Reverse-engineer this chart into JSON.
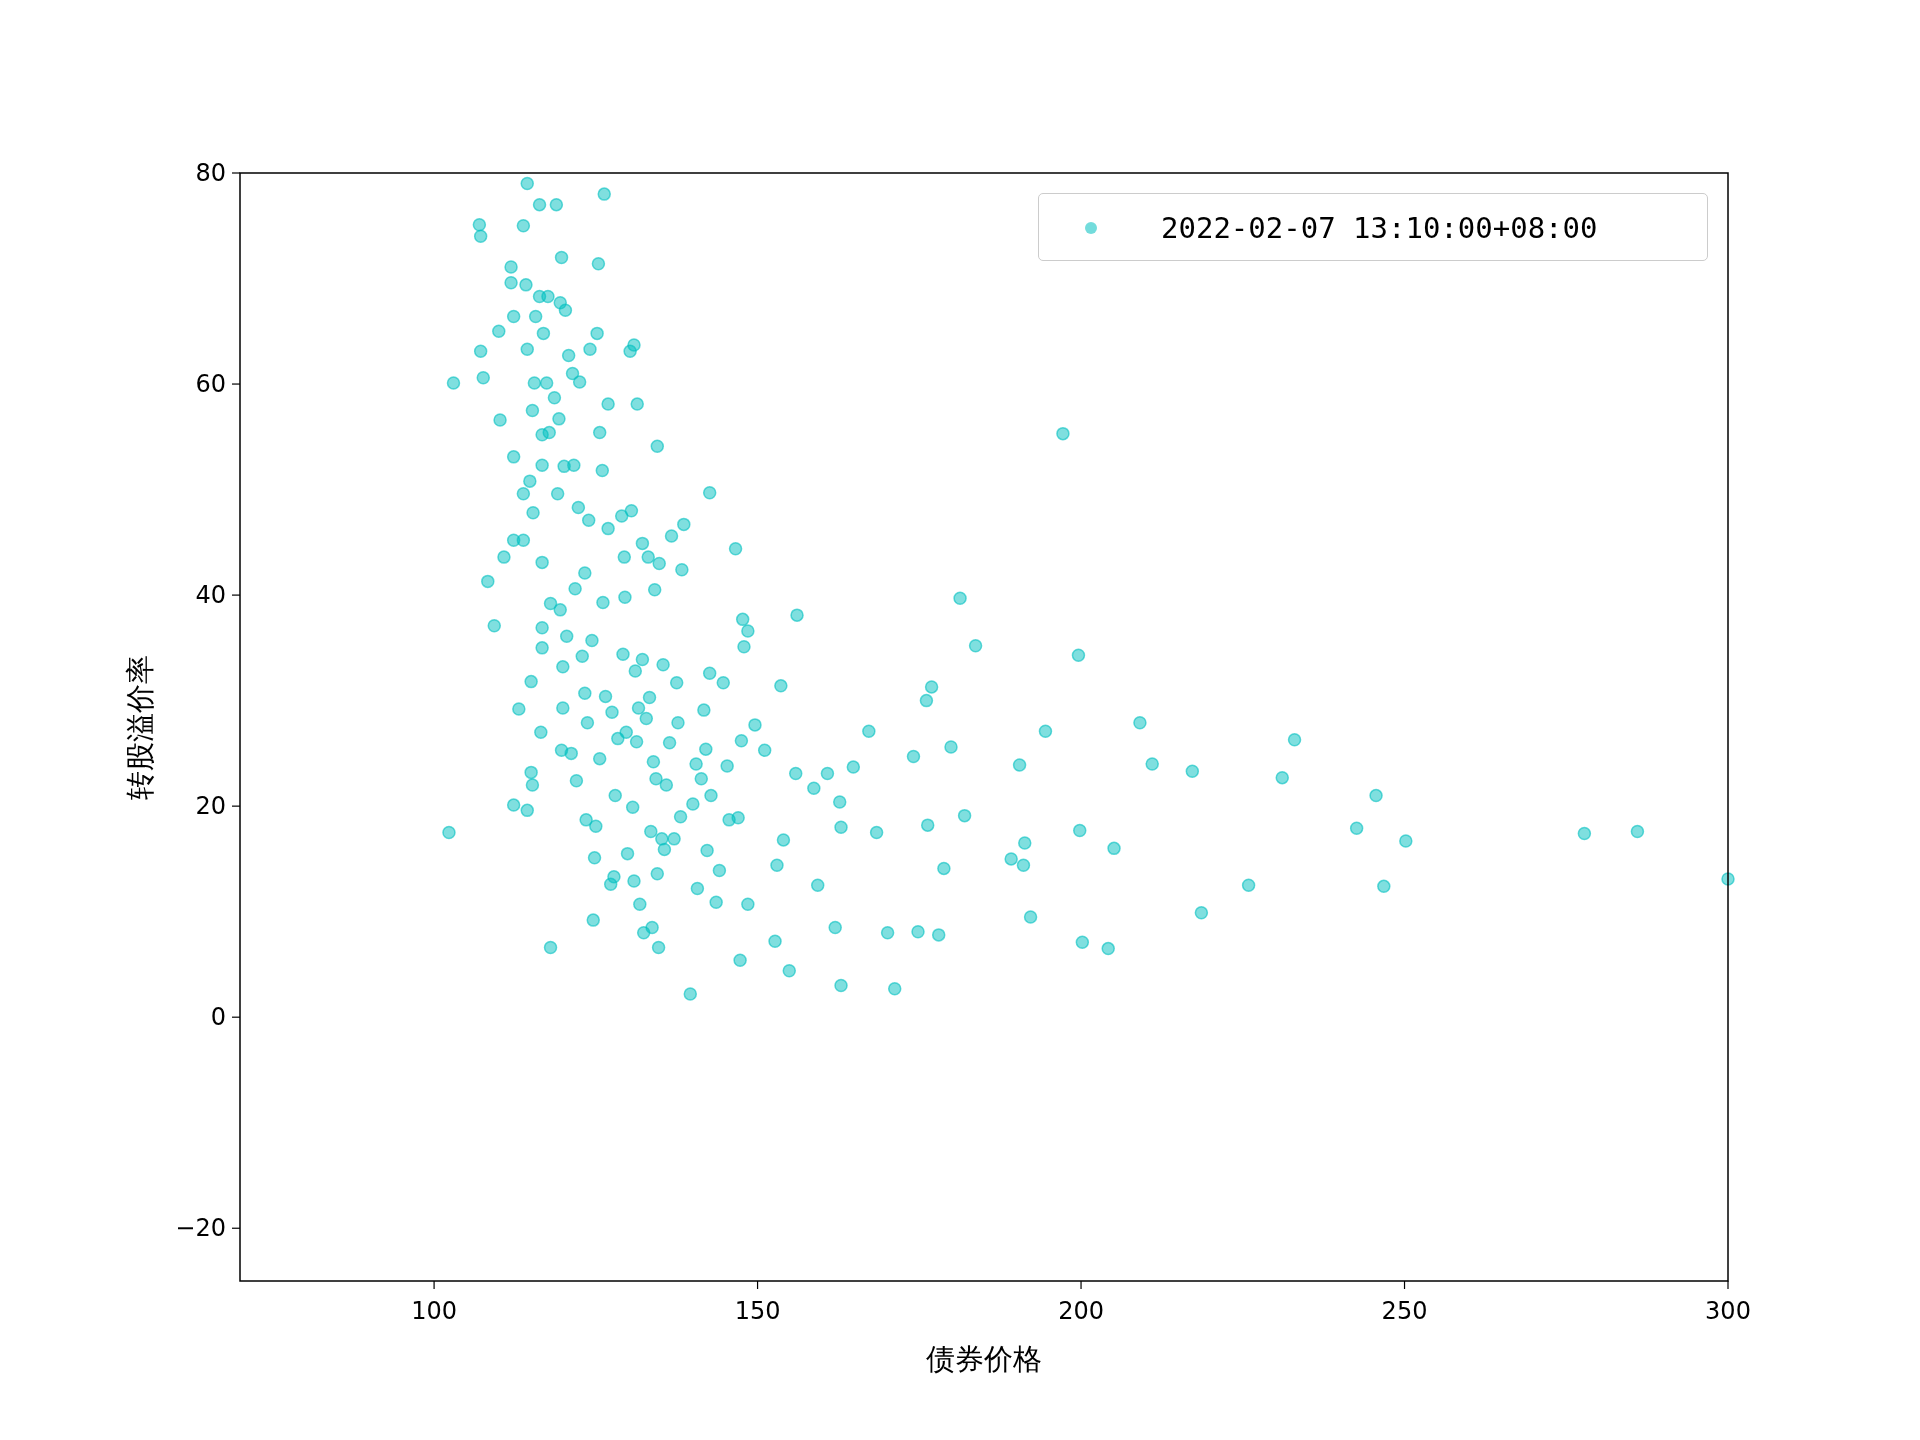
{
  "chart_data": {
    "type": "scatter",
    "xlabel": "债券价格",
    "ylabel": "转股溢价率",
    "xlim": [
      70,
      300
    ],
    "ylim": [
      -25,
      80
    ],
    "xticks": [
      100,
      150,
      200,
      250,
      300
    ],
    "yticks": [
      -20,
      0,
      20,
      40,
      60,
      80
    ],
    "legend": "top right",
    "marker": "circle",
    "series": [
      {
        "name": "2022-02-07 13:10:00+08:00",
        "color": "#00bfbf",
        "x": [
          102.3,
          103.0,
          107.0,
          107.2,
          107.2,
          107.6,
          108.3,
          109.3,
          110.0,
          110.2,
          110.8,
          111.9,
          111.9,
          112.3,
          112.3,
          112.3,
          112.3,
          113.1,
          113.8,
          113.8,
          113.8,
          114.2,
          114.4,
          114.4,
          114.4,
          114.8,
          115.0,
          115.0,
          115.2,
          115.2,
          115.3,
          115.5,
          115.7,
          116.3,
          116.3,
          116.5,
          116.7,
          116.7,
          116.7,
          116.7,
          116.7,
          116.9,
          117.4,
          117.6,
          117.8,
          118.0,
          118.0,
          118.6,
          118.9,
          119.1,
          119.3,
          119.5,
          119.5,
          119.7,
          119.7,
          119.9,
          119.9,
          120.1,
          120.3,
          120.5,
          120.8,
          121.2,
          121.4,
          121.6,
          121.8,
          122.0,
          122.3,
          122.5,
          122.9,
          123.3,
          123.3,
          123.5,
          123.7,
          123.9,
          124.1,
          124.4,
          124.6,
          124.8,
          125.0,
          125.2,
          125.4,
          125.6,
          125.6,
          126.0,
          126.1,
          126.3,
          126.5,
          126.9,
          126.9,
          127.3,
          127.5,
          127.8,
          128.0,
          128.4,
          129.0,
          129.2,
          129.4,
          129.5,
          129.7,
          129.9,
          130.3,
          130.5,
          130.7,
          130.9,
          130.9,
          131.1,
          131.3,
          131.4,
          131.6,
          131.8,
          132.2,
          132.2,
          132.4,
          132.8,
          133.1,
          133.3,
          133.5,
          133.7,
          133.9,
          134.1,
          134.3,
          134.5,
          134.5,
          134.7,
          134.8,
          135.2,
          135.4,
          135.6,
          135.9,
          136.4,
          136.7,
          137.1,
          137.5,
          137.7,
          138.1,
          138.3,
          138.6,
          139.6,
          140.0,
          140.5,
          140.7,
          141.3,
          141.7,
          142.0,
          142.2,
          142.6,
          142.6,
          142.8,
          143.6,
          144.1,
          144.7,
          145.3,
          145.6,
          146.6,
          147.0,
          147.3,
          147.5,
          147.7,
          147.9,
          148.5,
          148.5,
          149.6,
          151.1,
          152.7,
          153.0,
          153.6,
          154.0,
          154.9,
          155.9,
          156.1,
          158.7,
          159.3,
          160.8,
          162.0,
          162.7,
          162.9,
          162.9,
          164.8,
          167.2,
          168.4,
          170.1,
          171.2,
          174.1,
          174.8,
          176.1,
          176.3,
          176.9,
          178.0,
          178.8,
          179.9,
          181.3,
          182.0,
          183.7,
          189.2,
          190.5,
          191.1,
          191.3,
          192.2,
          194.5,
          197.2,
          199.6,
          199.8,
          200.2,
          204.2,
          205.1,
          209.1,
          211.0,
          217.2,
          218.6,
          225.9,
          231.1,
          233.0,
          242.6,
          245.6,
          246.8,
          250.2,
          277.8,
          286.0,
          300.0
        ],
        "values": [
          17.5,
          60.1,
          75.1,
          74.0,
          63.1,
          60.6,
          41.3,
          37.1,
          65.0,
          56.6,
          43.6,
          71.1,
          69.6,
          66.4,
          53.1,
          45.2,
          20.1,
          29.2,
          75.0,
          45.2,
          49.6,
          69.4,
          79.0,
          63.3,
          19.6,
          50.8,
          31.8,
          23.2,
          22.0,
          57.5,
          47.8,
          60.1,
          66.4,
          77.0,
          68.3,
          27.0,
          35.0,
          43.1,
          52.3,
          55.2,
          36.9,
          64.8,
          60.1,
          68.3,
          55.4,
          6.6,
          39.2,
          58.7,
          77.0,
          49.6,
          56.7,
          67.7,
          38.6,
          72.0,
          25.3,
          33.2,
          29.3,
          52.2,
          67.0,
          36.1,
          62.7,
          25.0,
          61.0,
          52.3,
          40.6,
          22.4,
          48.3,
          60.2,
          34.2,
          30.7,
          42.1,
          18.7,
          27.9,
          47.1,
          63.3,
          35.7,
          9.2,
          15.1,
          18.1,
          64.8,
          71.4,
          55.4,
          24.5,
          51.8,
          39.3,
          78.0,
          30.4,
          58.1,
          46.3,
          12.6,
          28.9,
          13.3,
          21.0,
          26.4,
          47.5,
          34.4,
          43.6,
          39.8,
          27.0,
          15.5,
          63.1,
          48.0,
          19.9,
          63.7,
          12.9,
          32.8,
          26.1,
          58.1,
          29.3,
          10.7,
          44.9,
          33.9,
          8.0,
          28.3,
          43.6,
          30.3,
          17.6,
          8.5,
          24.2,
          40.5,
          22.6,
          54.1,
          13.6,
          6.6,
          43.0,
          16.9,
          33.4,
          15.9,
          22.0,
          26.0,
          45.6,
          16.9,
          31.7,
          27.9,
          19.0,
          42.4,
          46.7,
          2.2,
          20.2,
          24.0,
          12.2,
          22.6,
          29.1,
          25.4,
          15.8,
          49.7,
          32.6,
          21.0,
          10.9,
          13.9,
          31.7,
          23.8,
          18.7,
          44.4,
          18.9,
          5.4,
          26.2,
          37.7,
          35.1,
          10.7,
          36.6,
          27.7,
          25.3,
          7.2,
          14.4,
          31.4,
          16.8,
          4.4,
          23.1,
          38.1,
          21.7,
          12.5,
          23.1,
          8.5,
          20.4,
          3.0,
          18.0,
          23.7,
          27.1,
          17.5,
          8.0,
          2.7,
          24.7,
          8.1,
          30.0,
          18.2,
          31.3,
          7.8,
          14.1,
          25.6,
          39.7,
          19.1,
          35.2,
          15.0,
          23.9,
          14.4,
          16.5,
          9.5,
          27.1,
          55.3,
          34.3,
          17.7,
          7.1,
          6.5,
          16.0,
          27.9,
          24.0,
          23.3,
          9.9,
          12.5,
          22.7,
          26.3,
          17.9,
          21.0,
          12.4,
          16.7,
          17.4,
          17.6,
          13.1
        ]
      }
    ]
  }
}
